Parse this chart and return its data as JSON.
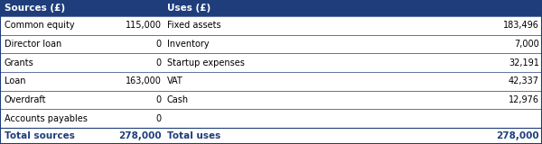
{
  "header_bg": "#1f3d7a",
  "header_text_color": "#ffffff",
  "body_bg": "#ffffff",
  "border_color": "#1f3d7a",
  "total_row_text_color": "#1f3d7a",
  "body_text_color": "#000000",
  "header": [
    "Sources (£)",
    "Uses (£)"
  ],
  "rows": [
    {
      "source_label": "Common equity",
      "source_value": "115,000",
      "use_label": "Fixed assets",
      "use_value": "183,496"
    },
    {
      "source_label": "Director loan",
      "source_value": "0",
      "use_label": "Inventory",
      "use_value": "7,000"
    },
    {
      "source_label": "Grants",
      "source_value": "0",
      "use_label": "Startup expenses",
      "use_value": "32,191"
    },
    {
      "source_label": "Loan",
      "source_value": "163,000",
      "use_label": "VAT",
      "use_value": "42,337"
    },
    {
      "source_label": "Overdraft",
      "source_value": "0",
      "use_label": "Cash",
      "use_value": "12,976"
    },
    {
      "source_label": "Accounts payables",
      "source_value": "0",
      "use_label": "",
      "use_value": ""
    }
  ],
  "total_row": {
    "source_label": "Total sources",
    "source_value": "278,000",
    "use_label": "Total uses",
    "use_value": "278,000"
  },
  "col_x_frac": {
    "source_label": 0.008,
    "source_value": 0.298,
    "use_label": 0.308,
    "use_value": 0.995
  },
  "header_x_frac": {
    "sources": 0.008,
    "uses": 0.308
  },
  "figsize": [
    6.0,
    1.6
  ],
  "dpi": 100,
  "header_font": 7.5,
  "body_font": 7.0,
  "total_font": 7.5
}
